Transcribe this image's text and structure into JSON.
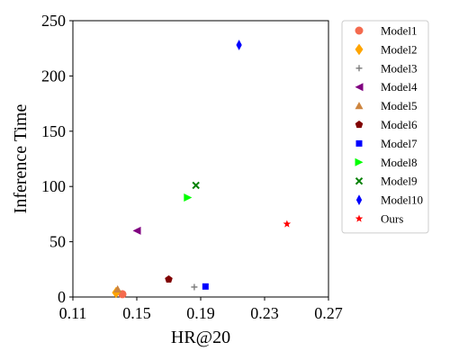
{
  "chart_data": {
    "type": "scatter",
    "xlabel": "HR@20",
    "ylabel": "Inference Time",
    "xlim": [
      0.11,
      0.27
    ],
    "ylim": [
      0,
      250
    ],
    "xticks": [
      "0.11",
      "0.15",
      "0.19",
      "0.23",
      "0.27"
    ],
    "yticks": [
      "0",
      "50",
      "100",
      "150",
      "200",
      "250"
    ],
    "grid": false,
    "legend_position": "outside-right",
    "series": [
      {
        "name": "Model1",
        "x": 0.141,
        "y": 2.5,
        "marker": "circle",
        "color": "#f46a4e"
      },
      {
        "name": "Model2",
        "x": 0.137,
        "y": 4,
        "marker": "diamond",
        "color": "#ffa500"
      },
      {
        "name": "Model3",
        "x": 0.186,
        "y": 9,
        "marker": "plus",
        "color": "#777777"
      },
      {
        "name": "Model4",
        "x": 0.15,
        "y": 60,
        "marker": "triangle-left",
        "color": "#800080"
      },
      {
        "name": "Model5",
        "x": 0.138,
        "y": 7,
        "marker": "triangle-up",
        "color": "#cd853f"
      },
      {
        "name": "Model6",
        "x": 0.17,
        "y": 16,
        "marker": "pentagon",
        "color": "#800000"
      },
      {
        "name": "Model7",
        "x": 0.193,
        "y": 9.5,
        "marker": "square",
        "color": "#0000ff"
      },
      {
        "name": "Model8",
        "x": 0.182,
        "y": 90,
        "marker": "triangle-right",
        "color": "#00ff00"
      },
      {
        "name": "Model9",
        "x": 0.187,
        "y": 101,
        "marker": "x",
        "color": "#008000"
      },
      {
        "name": "Model10",
        "x": 0.214,
        "y": 228,
        "marker": "thin-diamond",
        "color": "#0000ff"
      },
      {
        "name": "Ours",
        "x": 0.244,
        "y": 66,
        "marker": "star",
        "color": "#ff0000"
      }
    ]
  }
}
